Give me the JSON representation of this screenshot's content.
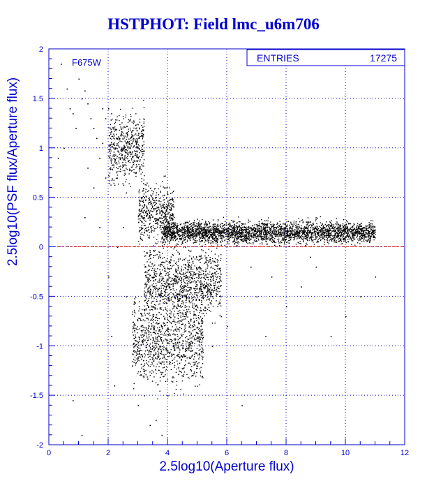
{
  "chart_data": {
    "type": "scatter",
    "title": "HSTPHOT: Field lmc_u6m706",
    "xlabel": "2.5log10(Aperture flux)",
    "ylabel": "2.5log10(PSF flux/Aperture flux)",
    "xlim": [
      0,
      12
    ],
    "ylim": [
      -2,
      2
    ],
    "xticks": [
      "0",
      "2",
      "4",
      "6",
      "8",
      "10",
      "12"
    ],
    "yticks": [
      "-2",
      "-1.5",
      "-1",
      "-0.5",
      "0",
      "0.5",
      "1",
      "1.5",
      "2"
    ],
    "xtick_values": [
      0,
      2,
      4,
      6,
      8,
      10,
      12
    ],
    "ytick_values": [
      -2,
      -1.5,
      -1,
      -0.5,
      0,
      0.5,
      1,
      1.5,
      2
    ],
    "grid": true,
    "reference_line": {
      "y": 0,
      "color": "#cc0000",
      "style": "dashed"
    },
    "annotation": "F675W",
    "stats_box": {
      "label": "ENTRIES",
      "value": "17275"
    },
    "entries": 17275,
    "points": [
      [
        0.4,
        1.85
      ],
      [
        0.6,
        1.6
      ],
      [
        0.7,
        1.4
      ],
      [
        0.8,
        1.35
      ],
      [
        1.0,
        1.7
      ],
      [
        1.1,
        1.5
      ],
      [
        1.2,
        1.58
      ],
      [
        1.3,
        1.45
      ],
      [
        1.4,
        1.3
      ],
      [
        1.5,
        1.2
      ],
      [
        0.9,
        1.2
      ],
      [
        1.6,
        1.1
      ],
      [
        1.8,
        1.05
      ],
      [
        1.9,
        1.3
      ],
      [
        2.0,
        1.4
      ],
      [
        2.1,
        1.35
      ],
      [
        2.2,
        1.25
      ],
      [
        0.3,
        0.9
      ],
      [
        0.5,
        1.0
      ],
      [
        1.5,
        0.6
      ],
      [
        1.2,
        0.3
      ],
      [
        1.7,
        0.2
      ],
      [
        2.1,
        -0.9
      ],
      [
        2.2,
        -1.4
      ],
      [
        2.6,
        -0.5
      ],
      [
        2.8,
        -1.2
      ],
      [
        3.0,
        -1.6
      ],
      [
        3.2,
        -1.5
      ],
      [
        3.6,
        -1.75
      ],
      [
        3.8,
        -1.9
      ],
      [
        4.0,
        -1.5
      ],
      [
        4.5,
        -1.3
      ],
      [
        5.0,
        -1.2
      ],
      [
        5.5,
        -1.0
      ],
      [
        6.0,
        -0.8
      ],
      [
        6.5,
        -1.6
      ],
      [
        7.0,
        -0.5
      ],
      [
        7.5,
        -0.3
      ],
      [
        8.0,
        -0.6
      ],
      [
        8.5,
        -0.4
      ],
      [
        9.0,
        -0.2
      ],
      [
        9.5,
        -0.9
      ],
      [
        10.0,
        -0.7
      ],
      [
        10.5,
        -0.5
      ],
      [
        11.0,
        -0.3
      ],
      [
        2.0,
        -0.3
      ],
      [
        2.3,
        0.0
      ],
      [
        2.5,
        0.2
      ],
      [
        1.1,
        -1.9
      ],
      [
        0.8,
        -1.55
      ],
      [
        3.4,
        -1.8
      ],
      [
        3.5,
        -0.7
      ],
      [
        5.8,
        -0.7
      ],
      [
        6.8,
        -0.2
      ],
      [
        7.3,
        -0.9
      ],
      [
        8.8,
        -0.1
      ],
      [
        9.7,
        0.1
      ],
      [
        10.8,
        0.05
      ],
      [
        6.2,
        0.2
      ],
      [
        7.6,
        0.02
      ],
      [
        1.3,
        0.8
      ],
      [
        1.7,
        0.9
      ],
      [
        1.9,
        0.7
      ],
      [
        2.4,
        0.9
      ],
      [
        2.7,
        1.05
      ],
      [
        2.9,
        0.75
      ],
      [
        3.2,
        0.3
      ],
      [
        1.8,
        1.4
      ],
      [
        2.3,
        1.1
      ],
      [
        2.6,
        0.55
      ]
    ],
    "density_bands": [
      {
        "x_range": [
          2.0,
          3.2
        ],
        "y_center": 1.0,
        "y_spread": 0.28
      },
      {
        "x_range": [
          3.0,
          4.2
        ],
        "y_center": 0.35,
        "y_spread": 0.25
      },
      {
        "x_range": [
          3.8,
          11.0
        ],
        "y_center": 0.15,
        "y_spread": 0.09
      },
      {
        "x_range": [
          3.2,
          5.8
        ],
        "y_center": -0.35,
        "y_spread": 0.3
      },
      {
        "x_range": [
          2.8,
          5.2
        ],
        "y_center": -0.95,
        "y_spread": 0.35
      }
    ]
  }
}
